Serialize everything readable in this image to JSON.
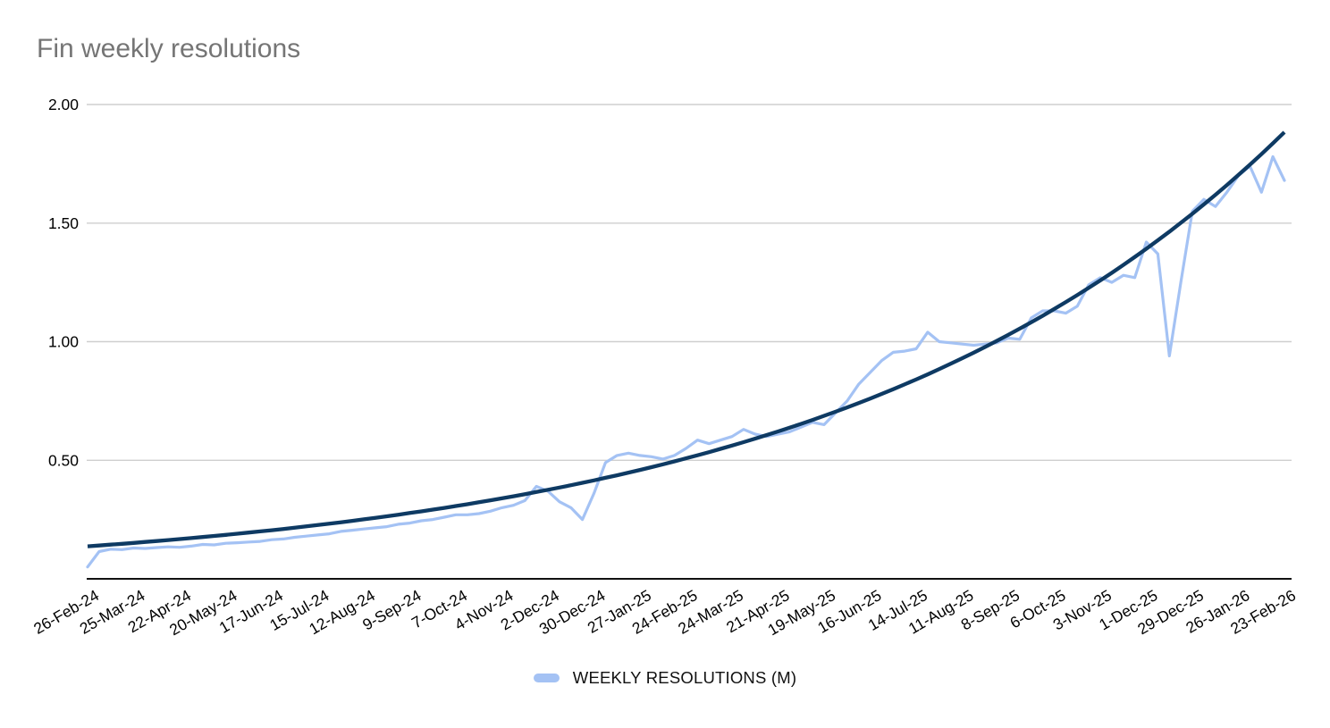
{
  "legend": {
    "label": "WEEKLY RESOLUTIONS (M)",
    "swatch_color": "#a4c2f4"
  },
  "chart_data": {
    "type": "line",
    "title": "Fin weekly resolutions",
    "xlabel": "",
    "ylabel": "",
    "ylim": [
      0,
      2.0
    ],
    "grid": "horizontal",
    "legend_position": "bottom",
    "y_ticks": [
      {
        "value": 2.0,
        "label": "2.00"
      },
      {
        "value": 1.5,
        "label": "1.50"
      },
      {
        "value": 1.0,
        "label": "1.00"
      },
      {
        "value": 0.5,
        "label": "0.50"
      }
    ],
    "x_tick_interval_weeks": 4,
    "x_tick_labels": [
      "26-Feb-24",
      "25-Mar-24",
      "22-Apr-24",
      "20-May-24",
      "17-Jun-24",
      "15-Jul-24",
      "12-Aug-24",
      "9-Sep-24",
      "7-Oct-24",
      "4-Nov-24",
      "2-Dec-24",
      "30-Dec-24",
      "27-Jan-25",
      "24-Feb-25",
      "24-Mar-25",
      "21-Apr-25",
      "19-May-25",
      "16-Jun-25",
      "14-Jul-25",
      "11-Aug-25",
      "8-Sep-25",
      "6-Oct-25",
      "3-Nov-25",
      "1-Dec-25",
      "29-Dec-25",
      "26-Jan-26",
      "23-Feb-26"
    ],
    "points_per_week": 1,
    "series": [
      {
        "name": "WEEKLY RESOLUTIONS (M)",
        "color": "#a4c2f4",
        "shown_in_legend": true,
        "values": [
          0.05,
          0.115,
          0.125,
          0.123,
          0.13,
          0.128,
          0.132,
          0.135,
          0.133,
          0.138,
          0.145,
          0.143,
          0.15,
          0.152,
          0.155,
          0.158,
          0.165,
          0.168,
          0.175,
          0.18,
          0.185,
          0.19,
          0.2,
          0.205,
          0.21,
          0.215,
          0.22,
          0.23,
          0.235,
          0.245,
          0.25,
          0.26,
          0.27,
          0.27,
          0.275,
          0.285,
          0.3,
          0.31,
          0.33,
          0.39,
          0.37,
          0.325,
          0.3,
          0.25,
          0.36,
          0.49,
          0.52,
          0.53,
          0.52,
          0.515,
          0.505,
          0.52,
          0.55,
          0.585,
          0.57,
          0.585,
          0.6,
          0.63,
          0.61,
          0.6,
          0.61,
          0.62,
          0.64,
          0.66,
          0.65,
          0.7,
          0.75,
          0.82,
          0.87,
          0.92,
          0.955,
          0.96,
          0.97,
          1.04,
          1.0,
          0.995,
          0.99,
          0.985,
          0.99,
          0.995,
          1.015,
          1.01,
          1.1,
          1.13,
          1.13,
          1.12,
          1.15,
          1.24,
          1.27,
          1.25,
          1.28,
          1.27,
          1.42,
          1.37,
          0.94,
          1.25,
          1.55,
          1.6,
          1.57,
          1.63,
          1.7,
          1.74,
          1.63,
          1.78,
          1.68
        ]
      },
      {
        "name": "trend",
        "kind": "exponential_trend",
        "color": "#0e3a63",
        "shown_in_legend": false,
        "start_value": 0.137,
        "weekly_growth": 0.0252,
        "end_value": 1.88
      }
    ],
    "style": {
      "gridline_color": "#cfcfcf",
      "axis_line_color": "#111111",
      "axis_text_color": "#000000",
      "title_color": "#757575",
      "background_color": "#ffffff"
    }
  }
}
